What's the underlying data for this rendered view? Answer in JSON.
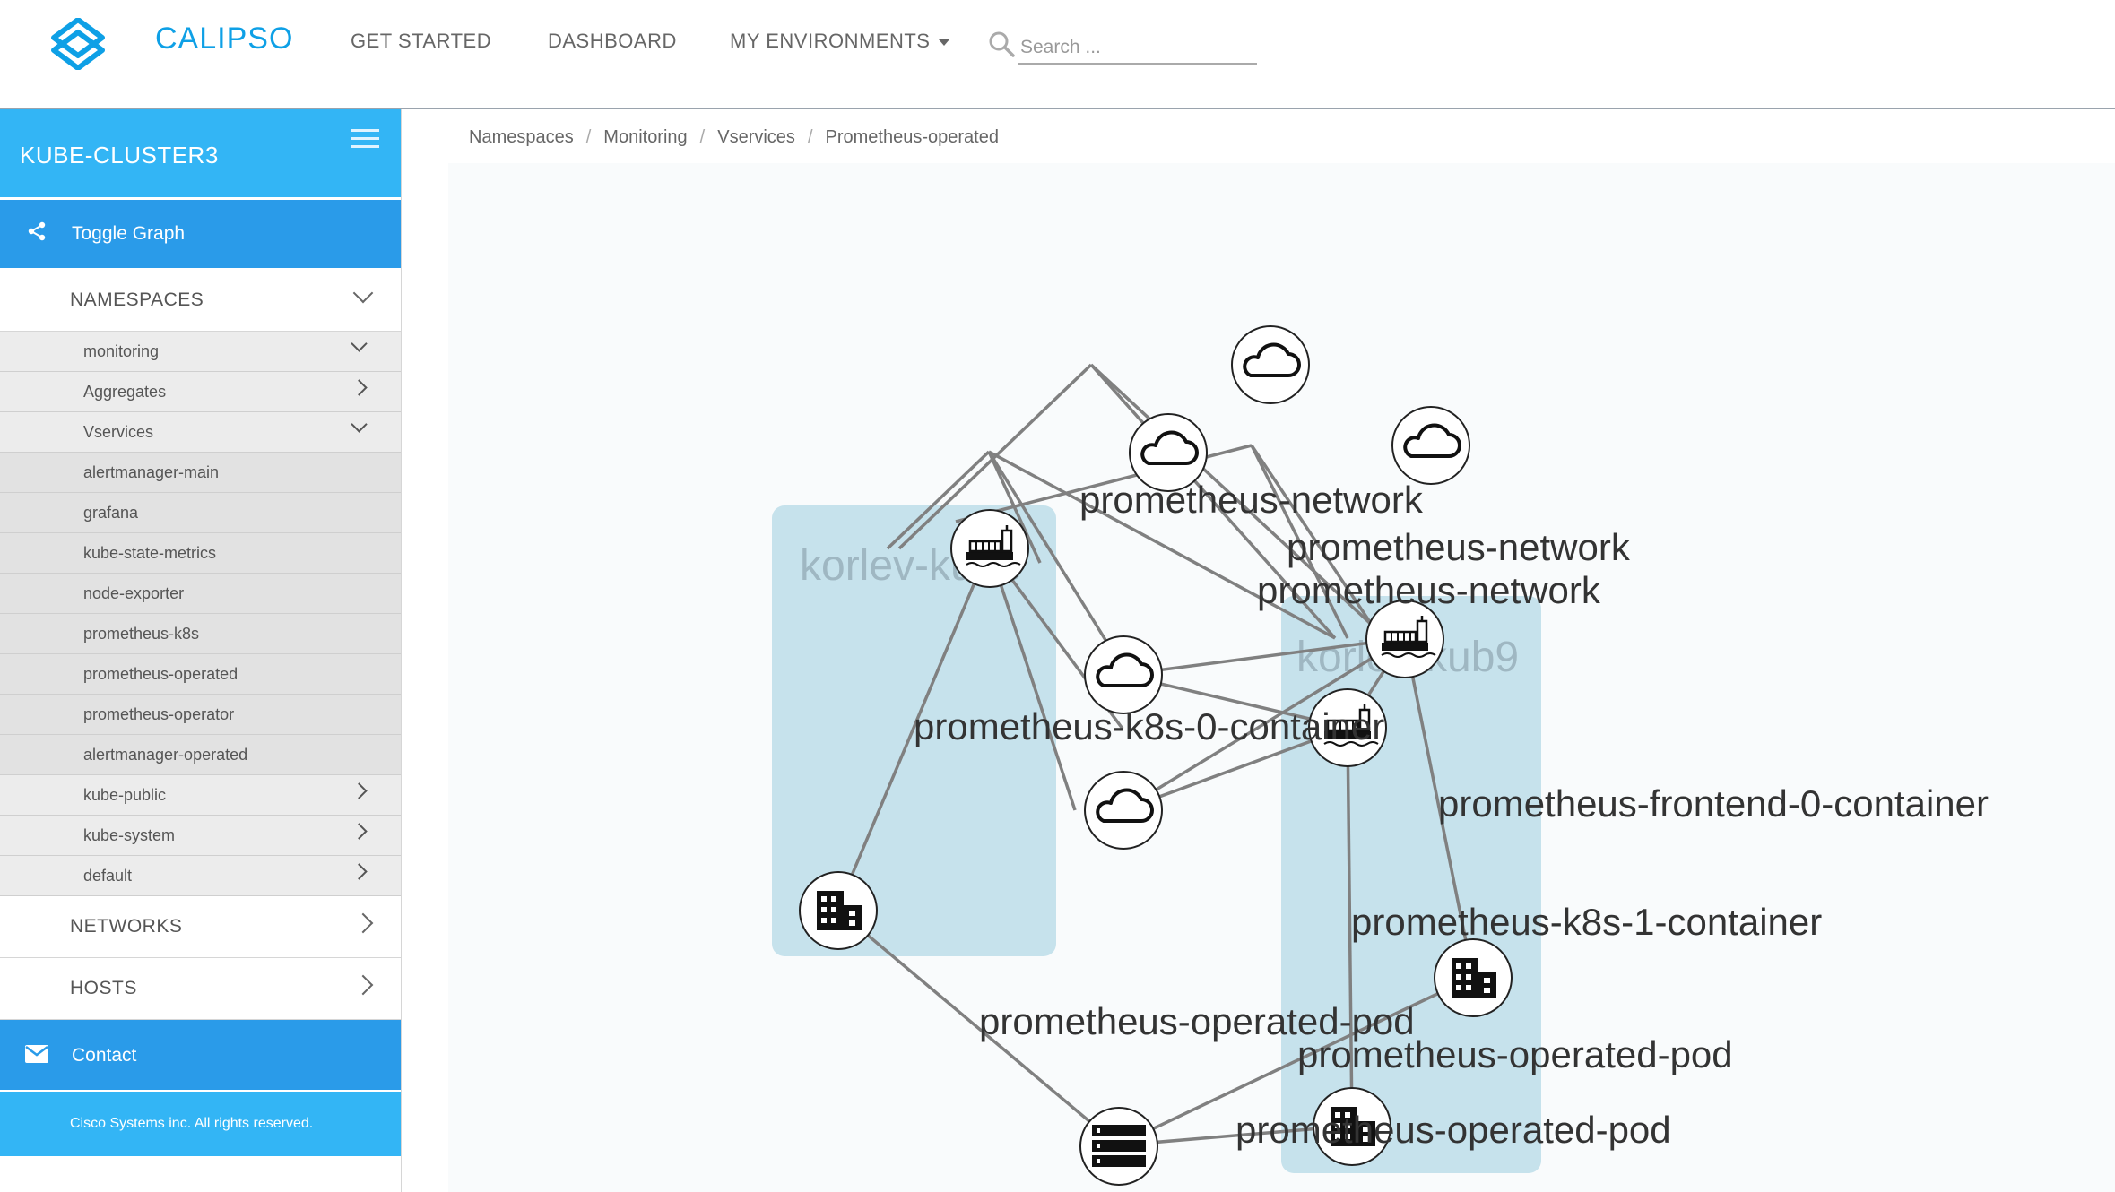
{
  "header": {
    "brand": "CALIPSO",
    "nav": [
      "GET STARTED",
      "DASHBOARD",
      "MY ENVIRONMENTS"
    ],
    "search_placeholder": "Search ..."
  },
  "sidebar": {
    "environment": "KUBE-CLUSTER3",
    "toggle_graph": "Toggle Graph",
    "namespaces_label": "NAMESPACES",
    "tree": [
      "monitoring",
      "Aggregates",
      "Vservices"
    ],
    "vservices": [
      "alertmanager-main",
      "grafana",
      "kube-state-metrics",
      "node-exporter",
      "prometheus-k8s",
      "prometheus-operated",
      "prometheus-operator",
      "alertmanager-operated"
    ],
    "namespaces_more": [
      "kube-public",
      "kube-system",
      "default"
    ],
    "networks_label": "NETWORKS",
    "hosts_label": "HOSTS",
    "contact": "Contact",
    "copyright": "Cisco Systems inc. All rights reserved."
  },
  "breadcrumb": [
    "Namespaces",
    "Monitoring",
    "Vservices",
    "Prometheus-operated"
  ],
  "graph": {
    "groups": [
      "korlev-kub8",
      "korlev-kub9"
    ],
    "node_labels": {
      "net1": "prometheus-network",
      "net2": "prometheus-network",
      "net3": "prometheus-network",
      "c0": "prometheus-k8s-0-container",
      "cf": "prometheus-frontend-0-container",
      "c1": "prometheus-k8s-1-container",
      "p1": "prometheus-operated-pod",
      "p2": "prometheus-operated-pod",
      "p3": "prometheus-operated-pod"
    }
  }
}
